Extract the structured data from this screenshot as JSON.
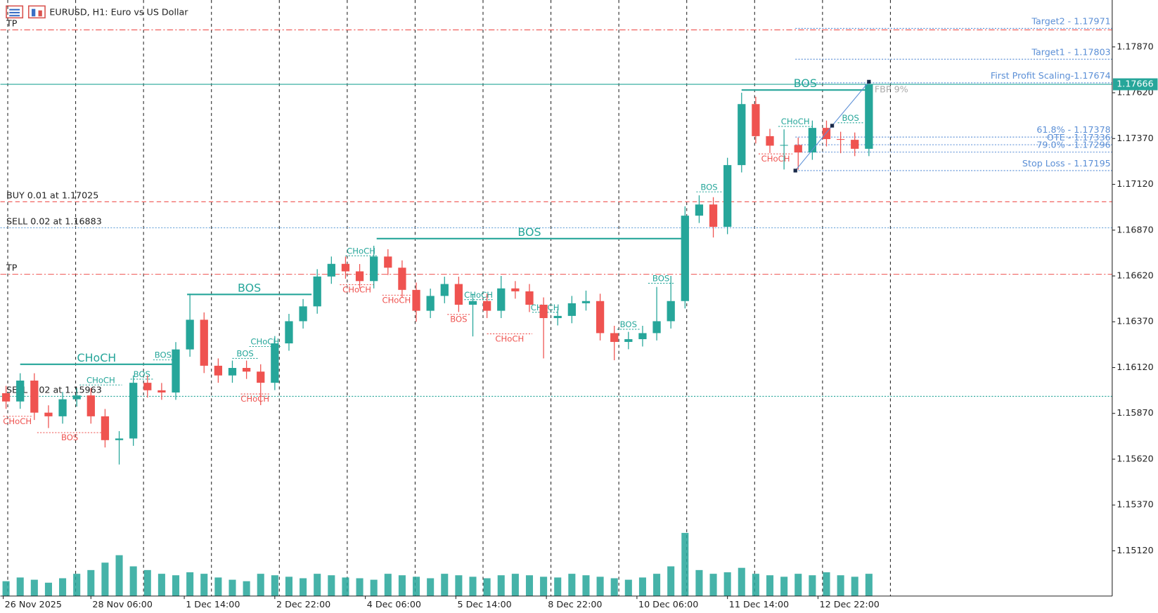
{
  "chart_data": {
    "type": "candlestick",
    "title": "EURUSD, H1:  Euro vs US Dollar",
    "bull_color": "#26a69a",
    "bear_color": "#ef5350",
    "volume_color": "#26a69a",
    "x": [
      2,
      7,
      12,
      17,
      22,
      27,
      32,
      37,
      42,
      47,
      52,
      57,
      62,
      67,
      72,
      77,
      82,
      87,
      92,
      97,
      102,
      107,
      112,
      117,
      122,
      127,
      132,
      137,
      142,
      147,
      152,
      157,
      162,
      167,
      172,
      177,
      182,
      187,
      192,
      197,
      202,
      207,
      212,
      217,
      222,
      227,
      232,
      237,
      242,
      247,
      252,
      257,
      262,
      267,
      272,
      277,
      282,
      287,
      292,
      297,
      302,
      307
    ],
    "open": [
      1.1598,
      1.15935,
      1.16049,
      1.15874,
      1.15854,
      1.15947,
      1.15968,
      1.15854,
      1.15724,
      1.15733,
      1.16037,
      1.15996,
      1.15984,
      1.16219,
      1.16381,
      1.1613,
      1.16077,
      1.16118,
      1.16098,
      1.16037,
      1.16252,
      1.16373,
      1.16454,
      1.16617,
      1.16686,
      1.16645,
      1.16592,
      1.16726,
      1.16665,
      1.16544,
      1.1643,
      1.16511,
      1.16576,
      1.16463,
      1.16483,
      1.1643,
      1.16552,
      1.16536,
      1.16463,
      1.1639,
      1.16402,
      1.16471,
      1.16483,
      1.16308,
      1.1626,
      1.16275,
      1.16308,
      1.16373,
      1.16483,
      1.16949,
      1.1701,
      1.16888,
      1.17225,
      1.17558,
      1.17383,
      1.17331,
      1.17335,
      1.17294,
      1.17428,
      1.17367,
      1.17363,
      1.17314
    ],
    "high": [
      1.1602,
      1.16089,
      1.16089,
      1.15914,
      1.15987,
      1.16008,
      1.16008,
      1.15894,
      1.15773,
      1.16077,
      1.16077,
      1.16036,
      1.16259,
      1.16523,
      1.16421,
      1.1617,
      1.16158,
      1.16158,
      1.16138,
      1.16292,
      1.16413,
      1.16494,
      1.16657,
      1.16726,
      1.16726,
      1.16685,
      1.16785,
      1.16766,
      1.16705,
      1.16584,
      1.16551,
      1.16616,
      1.16616,
      1.16523,
      1.16523,
      1.1662,
      1.16592,
      1.16576,
      1.16503,
      1.16442,
      1.16511,
      1.1654,
      1.16523,
      1.16348,
      1.16315,
      1.16348,
      1.1656,
      1.1662,
      1.17,
      1.1706,
      1.1705,
      1.17265,
      1.1762,
      1.17598,
      1.17423,
      1.1742,
      1.17375,
      1.17468,
      1.17468,
      1.17407,
      1.17403,
      1.1768
    ],
    "low": [
      1.15895,
      1.15895,
      1.15834,
      1.1579,
      1.15814,
      1.15907,
      1.15814,
      1.15684,
      1.15591,
      1.15693,
      1.15956,
      1.15944,
      1.15944,
      1.16179,
      1.1609,
      1.16037,
      1.16037,
      1.16058,
      1.15915,
      1.15997,
      1.16212,
      1.16333,
      1.16414,
      1.16577,
      1.16605,
      1.16552,
      1.16552,
      1.16625,
      1.16504,
      1.1637,
      1.1639,
      1.16471,
      1.16423,
      1.1629,
      1.1639,
      1.1639,
      1.16496,
      1.16423,
      1.1617,
      1.1635,
      1.16362,
      1.16431,
      1.16268,
      1.1616,
      1.1622,
      1.16235,
      1.16268,
      1.16333,
      1.16443,
      1.16909,
      1.1683,
      1.16848,
      1.17185,
      1.17343,
      1.17291,
      1.17201,
      1.172,
      1.17254,
      1.17327,
      1.1729,
      1.17274,
      1.17274
    ],
    "close": [
      1.15935,
      1.16049,
      1.15874,
      1.15854,
      1.15947,
      1.15968,
      1.15854,
      1.15724,
      1.15733,
      1.16037,
      1.15996,
      1.15984,
      1.16219,
      1.16381,
      1.1613,
      1.16077,
      1.16118,
      1.16098,
      1.16037,
      1.16252,
      1.16373,
      1.16454,
      1.16617,
      1.16686,
      1.16645,
      1.16592,
      1.16726,
      1.16665,
      1.16544,
      1.1643,
      1.16511,
      1.16576,
      1.16463,
      1.16483,
      1.1643,
      1.16552,
      1.16536,
      1.16463,
      1.1639,
      1.16402,
      1.16471,
      1.16483,
      1.16308,
      1.1626,
      1.16275,
      1.16308,
      1.16373,
      1.16483,
      1.16949,
      1.1701,
      1.16888,
      1.17225,
      1.17558,
      1.17383,
      1.17331,
      1.17335,
      1.17294,
      1.17428,
      1.17367,
      1.17363,
      1.17314,
      1.17666
    ],
    "volume": [
      20,
      25,
      22,
      18,
      24,
      30,
      35,
      45,
      55,
      40,
      35,
      30,
      28,
      32,
      30,
      25,
      22,
      20,
      30,
      28,
      26,
      24,
      30,
      28,
      25,
      24,
      22,
      30,
      28,
      26,
      24,
      30,
      28,
      26,
      24,
      28,
      30,
      28,
      26,
      25,
      30,
      28,
      26,
      24,
      22,
      25,
      30,
      40,
      85,
      35,
      30,
      32,
      38,
      30,
      28,
      26,
      30,
      28,
      32,
      28,
      26,
      30
    ],
    "xlim": [
      0,
      393
    ],
    "ylim": [
      1.14873,
      1.18126
    ],
    "yticks": [
      {
        "value": 1.1787,
        "label": "1.17870"
      },
      {
        "value": 1.1762,
        "label": "1.17620"
      },
      {
        "value": 1.1737,
        "label": "1.17370"
      },
      {
        "value": 1.1712,
        "label": "1.17120"
      },
      {
        "value": 1.1687,
        "label": "1.16870"
      },
      {
        "value": 1.1662,
        "label": "1.16620"
      },
      {
        "value": 1.1637,
        "label": "1.16370"
      },
      {
        "value": 1.1612,
        "label": "1.16120"
      },
      {
        "value": 1.1587,
        "label": "1.15870"
      },
      {
        "value": 1.1562,
        "label": "1.15620"
      },
      {
        "value": 1.1537,
        "label": "1.15370"
      },
      {
        "value": 1.1512,
        "label": "1.15120"
      }
    ],
    "xticks": [
      {
        "value": 1,
        "label": "26 Nov 2025"
      },
      {
        "value": 32,
        "label": "28 Nov 06:00"
      },
      {
        "value": 65,
        "label": "1 Dec 14:00"
      },
      {
        "value": 97,
        "label": "2 Dec 22:00"
      },
      {
        "value": 129,
        "label": "4 Dec 06:00"
      },
      {
        "value": 161,
        "label": "5 Dec 14:00"
      },
      {
        "value": 193,
        "label": "8 Dec 22:00"
      },
      {
        "value": 225,
        "label": "10 Dec 06:00"
      },
      {
        "value": 257,
        "label": "11 Dec 14:00"
      },
      {
        "value": 289,
        "label": "12 Dec 22:00"
      }
    ],
    "xgrid": [
      2.6,
      26.6,
      50.6,
      74.6,
      98.6,
      122.6,
      146.6,
      170.6,
      194.6,
      218.6,
      242.6,
      266.6,
      290.6,
      314.6
    ],
    "grid": true,
    "current_price": 1.17666,
    "current_color": "#26a69a",
    "levels": [
      {
        "label": "TP",
        "value": 1.17963,
        "color": "#ef5350",
        "style": "dashdot",
        "side": "left"
      },
      {
        "label": "TP",
        "value": 1.16629,
        "color": "#ef5350",
        "style": "dashdot",
        "side": "left"
      },
      {
        "label": "BUY 0.01 at 1.17025",
        "value": 1.17025,
        "color": "#ef5350",
        "style": "dashed",
        "side": "left"
      },
      {
        "label": "SELL 0.02 at 1.16883",
        "value": 1.16883,
        "color": "#5b9bd5",
        "style": "dotted",
        "side": "left"
      },
      {
        "label": "SELL 0.02 at 1.15963",
        "value": 1.15963,
        "color": "#26a69a",
        "style": "dotted",
        "side": "left"
      },
      {
        "label": "Target2 - 1.17971",
        "value": 1.17971,
        "color": "#5b8fd6",
        "style": "dotted",
        "side": "right"
      },
      {
        "label": "Target1 - 1.17803",
        "value": 1.17803,
        "color": "#5b8fd6",
        "style": "dotted",
        "side": "right"
      },
      {
        "label": "First Profit Scaling-1.17674",
        "value": 1.17674,
        "color": "#5b8fd6",
        "style": "dotted",
        "side": "right"
      },
      {
        "label": "61.8% - 1.17378",
        "value": 1.17378,
        "color": "#5b8fd6",
        "style": "dotted",
        "side": "right"
      },
      {
        "label": "OTE - 1.17336",
        "value": 1.17336,
        "color": "#5b8fd6",
        "style": "dotted",
        "side": "right"
      },
      {
        "label": "79.0% - 1.17296",
        "value": 1.17296,
        "color": "#5b8fd6",
        "style": "dotted",
        "side": "right"
      },
      {
        "label": "Stop Loss - 1.17195",
        "value": 1.17195,
        "color": "#5b8fd6",
        "style": "dotted",
        "side": "right"
      }
    ],
    "swing": {
      "x": [
        281,
        294,
        307
      ],
      "y": [
        1.17195,
        1.1744,
        1.1768
      ],
      "color": "#5b8fd6"
    },
    "fbp": {
      "label": "FBP  9%",
      "x": 309,
      "y": 1.17635
    },
    "structures": [
      {
        "label": "CHoCH",
        "x": [
          7,
          61
        ],
        "price": 1.16138,
        "color": "#26a69a",
        "style": "solid"
      },
      {
        "label": "BOS",
        "x": [
          66,
          110
        ],
        "price": 1.16519,
        "color": "#26a69a",
        "style": "solid"
      },
      {
        "label": "BOS",
        "x": [
          133,
          241
        ],
        "price": 1.16824,
        "color": "#26a69a",
        "style": "solid"
      },
      {
        "label": "BOS",
        "x": [
          262,
          307
        ],
        "price": 1.17635,
        "color": "#26a69a",
        "style": "solid"
      },
      {
        "label": "BOS",
        "x": [
          54,
          61
        ],
        "price": 1.16162,
        "color": "#26a69a",
        "style": "dotted"
      },
      {
        "label": "BOS",
        "x": [
          46,
          54
        ],
        "price": 1.16057,
        "color": "#26a69a",
        "style": "dotted"
      },
      {
        "label": "CHoCH",
        "x": [
          28,
          43
        ],
        "price": 1.16025,
        "color": "#26a69a",
        "style": "dotted"
      },
      {
        "label": "CHoCH",
        "x": [
          1,
          11
        ],
        "price": 1.15854,
        "color": "#ef5350",
        "style": "dotted"
      },
      {
        "label": "BOS",
        "x": [
          13,
          36
        ],
        "price": 1.15765,
        "color": "#ef5350",
        "style": "dotted"
      },
      {
        "label": "BOS",
        "x": [
          82,
          91
        ],
        "price": 1.1617,
        "color": "#26a69a",
        "style": "dotted"
      },
      {
        "label": "CHoCH",
        "x": [
          88,
          99
        ],
        "price": 1.16235,
        "color": "#26a69a",
        "style": "dotted"
      },
      {
        "label": "CHoCH",
        "x": [
          85,
          95
        ],
        "price": 1.15976,
        "color": "#ef5350",
        "style": "dotted"
      },
      {
        "label": "CHoCH",
        "x": [
          122,
          133
        ],
        "price": 1.1673,
        "color": "#26a69a",
        "style": "dotted"
      },
      {
        "label": "CHoCH",
        "x": [
          120,
          132
        ],
        "price": 1.16572,
        "color": "#ef5350",
        "style": "dotted"
      },
      {
        "label": "CHoCH",
        "x": [
          135,
          145
        ],
        "price": 1.16515,
        "color": "#ef5350",
        "style": "dotted"
      },
      {
        "label": "BOS",
        "x": [
          158,
          166
        ],
        "price": 1.1641,
        "color": "#ef5350",
        "style": "dotted"
      },
      {
        "label": "CHoCH",
        "x": [
          164,
          174
        ],
        "price": 1.16491,
        "color": "#26a69a",
        "style": "dotted"
      },
      {
        "label": "CHoCH",
        "x": [
          172,
          188
        ],
        "price": 1.16304,
        "color": "#ef5350",
        "style": "dotted"
      },
      {
        "label": "CHoCH",
        "x": [
          188,
          197
        ],
        "price": 1.16422,
        "color": "#26a69a",
        "style": "dotted"
      },
      {
        "label": "BOS",
        "x": [
          218,
          226
        ],
        "price": 1.16329,
        "color": "#26a69a",
        "style": "dotted"
      },
      {
        "label": "BOS",
        "x": [
          229,
          238
        ],
        "price": 1.1658,
        "color": "#26a69a",
        "style": "dotted"
      },
      {
        "label": "BOS",
        "x": [
          246,
          255
        ],
        "price": 1.17079,
        "color": "#26a69a",
        "style": "dotted"
      },
      {
        "label": "CHoCH",
        "x": [
          275,
          287
        ],
        "price": 1.17436,
        "color": "#26a69a",
        "style": "dotted"
      },
      {
        "label": "CHoCH",
        "x": [
          268,
          280
        ],
        "price": 1.17286,
        "color": "#ef5350",
        "style": "dotted"
      },
      {
        "label": "BOS",
        "x": [
          296,
          305
        ],
        "price": 1.17456,
        "color": "#26a69a",
        "style": "dotted"
      }
    ]
  }
}
